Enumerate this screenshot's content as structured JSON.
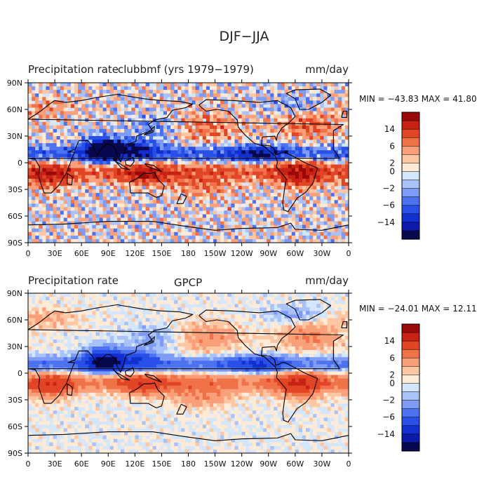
{
  "figure": {
    "title": "DJF−JJA"
  },
  "colors": {
    "ocean_bg": "#d3e6fb",
    "coast": "#000000",
    "levels": [
      "#08084e",
      "#0c1aa8",
      "#1230d0",
      "#2850e6",
      "#4d72f0",
      "#7e9bf5",
      "#a9c2f7",
      "#d3e6fb",
      "#fdebd8",
      "#fcc7a2",
      "#f9a07a",
      "#f07248",
      "#e24526",
      "#c72214",
      "#9b0a0a"
    ]
  },
  "chart_data": [
    {
      "type": "heatmap",
      "id": "model",
      "label_left": "Precipitation rate",
      "label_center": "clubbmf (yrs 1979−1979)",
      "units": "mm/day",
      "stats": "MIN = −43.83 MAX =  41.80",
      "min": -43.83,
      "max": 41.8,
      "xticks": [
        "0",
        "30E",
        "60E",
        "90E",
        "120E",
        "150E",
        "180",
        "150W",
        "120W",
        "90W",
        "60W",
        "30W",
        "0"
      ],
      "yticks": [
        "90N",
        "60N",
        "30N",
        "0",
        "30S",
        "60S",
        "90S"
      ],
      "xlim": [
        0,
        360
      ],
      "ylim": [
        -90,
        90
      ],
      "colorbar_labels": [
        "14",
        "6",
        "2",
        "0",
        "−2",
        "−6",
        "−14"
      ],
      "contour_levels": [
        -14,
        -10,
        -6,
        -4,
        -2,
        -1,
        0,
        1,
        2,
        4,
        6,
        10,
        14
      ]
    },
    {
      "type": "heatmap",
      "id": "obs",
      "label_left": "Precipitation rate",
      "label_center": "GPCP",
      "units": "mm/day",
      "stats": "MIN = −24.01 MAX =  12.11",
      "min": -24.01,
      "max": 12.11,
      "xticks": [
        "0",
        "30E",
        "60E",
        "90E",
        "120E",
        "150E",
        "180",
        "150W",
        "120W",
        "90W",
        "60W",
        "30W",
        "0"
      ],
      "yticks": [
        "90N",
        "60N",
        "30N",
        "0",
        "30S",
        "60S",
        "90S"
      ],
      "xlim": [
        0,
        360
      ],
      "ylim": [
        -90,
        90
      ],
      "colorbar_labels": [
        "14",
        "6",
        "2",
        "0",
        "−2",
        "−6",
        "−14"
      ],
      "contour_levels": [
        -14,
        -10,
        -6,
        -4,
        -2,
        -1,
        0,
        1,
        2,
        4,
        6,
        10,
        14
      ]
    }
  ]
}
